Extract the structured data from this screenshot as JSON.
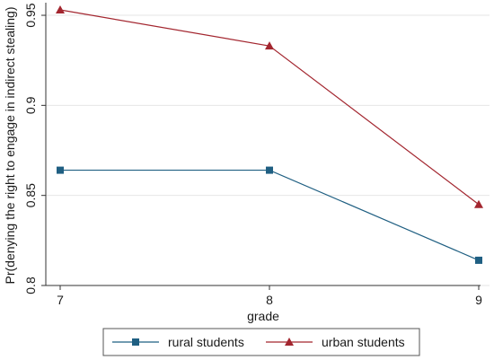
{
  "chart_data": {
    "type": "line",
    "title": "",
    "xlabel": "grade",
    "ylabel": "Pr(denying the right to engage in indirect stealing)",
    "x": [
      7,
      8,
      9
    ],
    "x_tick_labels": [
      "7",
      "8",
      "9"
    ],
    "xlim": [
      7,
      9
    ],
    "ylim": [
      0.8,
      0.955
    ],
    "y_ticks": [
      0.8,
      0.85,
      0.9,
      0.95
    ],
    "y_tick_labels": [
      "0.8",
      "0.85",
      "0.9",
      "0.95"
    ],
    "grid": "horizontal",
    "legend_position": "bottom",
    "series": [
      {
        "name": "rural students",
        "marker": "square",
        "color": "#1f5f82",
        "values": [
          0.864,
          0.864,
          0.814
        ]
      },
      {
        "name": "urban students",
        "marker": "triangle",
        "color": "#a3262f",
        "values": [
          0.953,
          0.933,
          0.845
        ]
      }
    ]
  }
}
